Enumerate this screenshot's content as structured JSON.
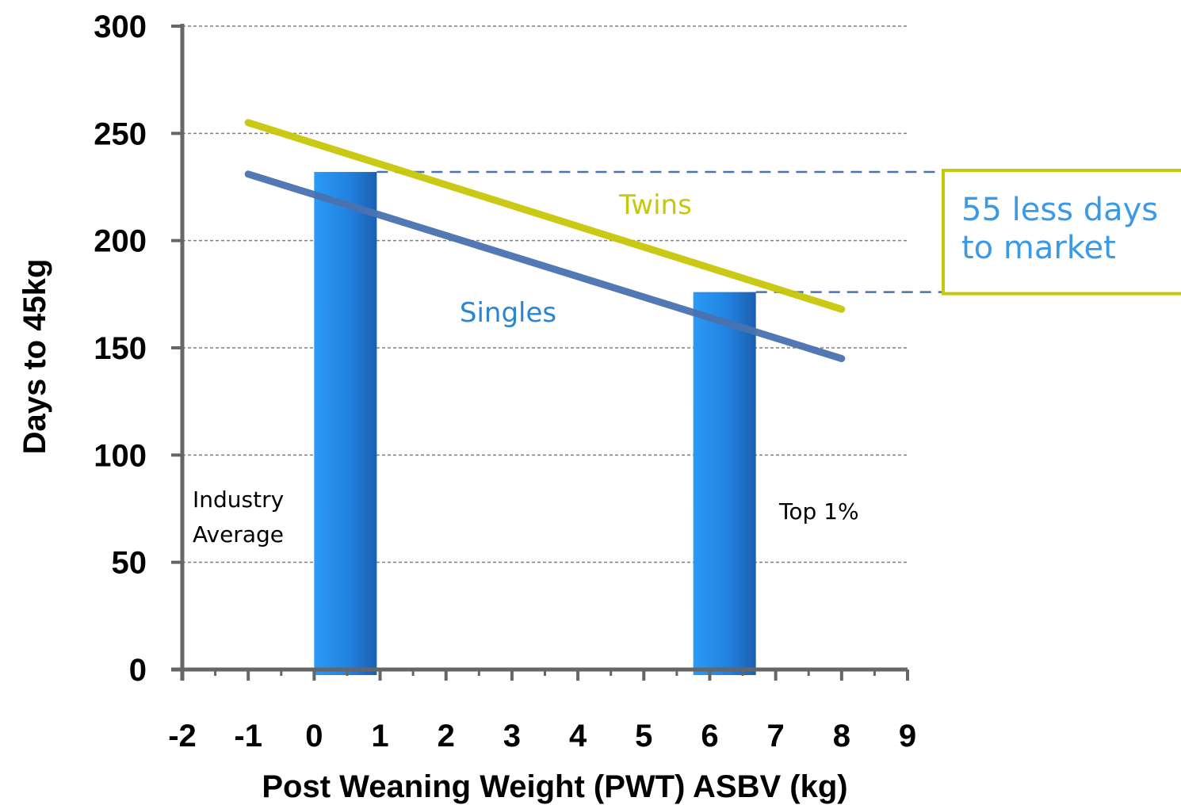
{
  "chart_data": {
    "type": "bar",
    "xlabel": "Post Weaning Weight (PWT) ASBV (kg)",
    "ylabel": "Days to 45kg",
    "xlim": [
      -2,
      9
    ],
    "ylim": [
      0,
      300
    ],
    "x_ticks": [
      "-2",
      "-1",
      "0",
      "1",
      "2",
      "3",
      "4",
      "5",
      "6",
      "7",
      "8",
      "9"
    ],
    "y_ticks": [
      "0",
      "50",
      "100",
      "150",
      "200",
      "250",
      "300"
    ],
    "grid": "horizontal dashed",
    "bars": [
      {
        "x_from": 0,
        "x_to": 0.95,
        "value": 232,
        "note": "Industry\nAverage"
      },
      {
        "x_from": 5.75,
        "x_to": 6.7,
        "value": 176,
        "note": "Top 1%"
      }
    ],
    "series": [
      {
        "name": "Twins",
        "color": "#c8c80a",
        "x": [
          -1,
          8
        ],
        "y": [
          255,
          168
        ]
      },
      {
        "name": "Singles",
        "color": "#4a72b0",
        "x": [
          -1,
          8
        ],
        "y": [
          231,
          145
        ]
      }
    ],
    "annotations": {
      "callout": "55 less days\nto market",
      "callout_border_color": "#c8c80a",
      "callout_text_color": "#3b9ae8",
      "reference_values": [
        232,
        176
      ],
      "reference_line_color": "#4a72b0"
    },
    "bar_color": "#2f8fe8"
  }
}
